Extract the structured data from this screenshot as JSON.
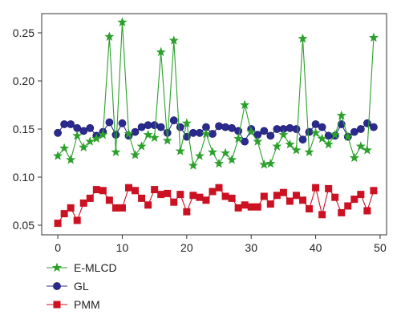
{
  "chart_data": {
    "type": "line",
    "title": "",
    "xlabel": "",
    "ylabel": "",
    "xlim": [
      -2.5,
      51
    ],
    "ylim": [
      0.04,
      0.27
    ],
    "xticks": [
      0,
      10,
      20,
      30,
      40,
      50
    ],
    "xtick_labels": [
      "0",
      "10",
      "20",
      "30",
      "40",
      "50"
    ],
    "yticks": [
      0.05,
      0.1,
      0.15,
      0.2,
      0.25
    ],
    "ytick_labels": [
      "0.05",
      "0.10",
      "0.15",
      "0.20",
      "0.25"
    ],
    "grid": false,
    "legend_position": "bottom-left",
    "x": [
      0,
      1,
      2,
      3,
      4,
      5,
      6,
      7,
      8,
      9,
      10,
      11,
      12,
      13,
      14,
      15,
      16,
      17,
      18,
      19,
      20,
      21,
      22,
      23,
      24,
      25,
      26,
      27,
      28,
      29,
      30,
      31,
      32,
      33,
      34,
      35,
      36,
      37,
      38,
      39,
      40,
      41,
      42,
      43,
      44,
      45,
      46,
      47,
      48,
      49
    ],
    "series": [
      {
        "name": "E-MLCD",
        "color": "#2ca02c",
        "marker": "star",
        "values": [
          0.122,
          0.13,
          0.118,
          0.143,
          0.131,
          0.137,
          0.14,
          0.144,
          0.246,
          0.126,
          0.261,
          0.145,
          0.123,
          0.132,
          0.144,
          0.141,
          0.23,
          0.138,
          0.242,
          0.127,
          0.156,
          0.112,
          0.122,
          0.145,
          0.126,
          0.114,
          0.125,
          0.118,
          0.14,
          0.175,
          0.147,
          0.137,
          0.113,
          0.114,
          0.132,
          0.144,
          0.134,
          0.128,
          0.244,
          0.126,
          0.146,
          0.14,
          0.134,
          0.144,
          0.164,
          0.142,
          0.12,
          0.132,
          0.128,
          0.245
        ]
      },
      {
        "name": "GL",
        "color": "#2b2b8f",
        "marker": "circle",
        "values": [
          0.146,
          0.155,
          0.155,
          0.151,
          0.148,
          0.151,
          0.143,
          0.147,
          0.157,
          0.144,
          0.156,
          0.143,
          0.147,
          0.152,
          0.154,
          0.154,
          0.152,
          0.146,
          0.159,
          0.152,
          0.142,
          0.146,
          0.146,
          0.152,
          0.145,
          0.153,
          0.152,
          0.151,
          0.148,
          0.137,
          0.15,
          0.144,
          0.148,
          0.143,
          0.15,
          0.15,
          0.151,
          0.15,
          0.139,
          0.147,
          0.155,
          0.152,
          0.143,
          0.143,
          0.155,
          0.142,
          0.147,
          0.15,
          0.156,
          0.152
        ]
      },
      {
        "name": "PMM",
        "color": "#cc1122",
        "marker": "square",
        "values": [
          0.052,
          0.062,
          0.068,
          0.055,
          0.073,
          0.078,
          0.087,
          0.086,
          0.076,
          0.068,
          0.068,
          0.089,
          0.086,
          0.078,
          0.071,
          0.087,
          0.082,
          0.083,
          0.074,
          0.082,
          0.064,
          0.081,
          0.079,
          0.076,
          0.085,
          0.089,
          0.08,
          0.078,
          0.068,
          0.071,
          0.069,
          0.069,
          0.08,
          0.072,
          0.081,
          0.084,
          0.075,
          0.081,
          0.076,
          0.067,
          0.089,
          0.061,
          0.088,
          0.079,
          0.063,
          0.07,
          0.077,
          0.082,
          0.065,
          0.086
        ]
      }
    ]
  }
}
